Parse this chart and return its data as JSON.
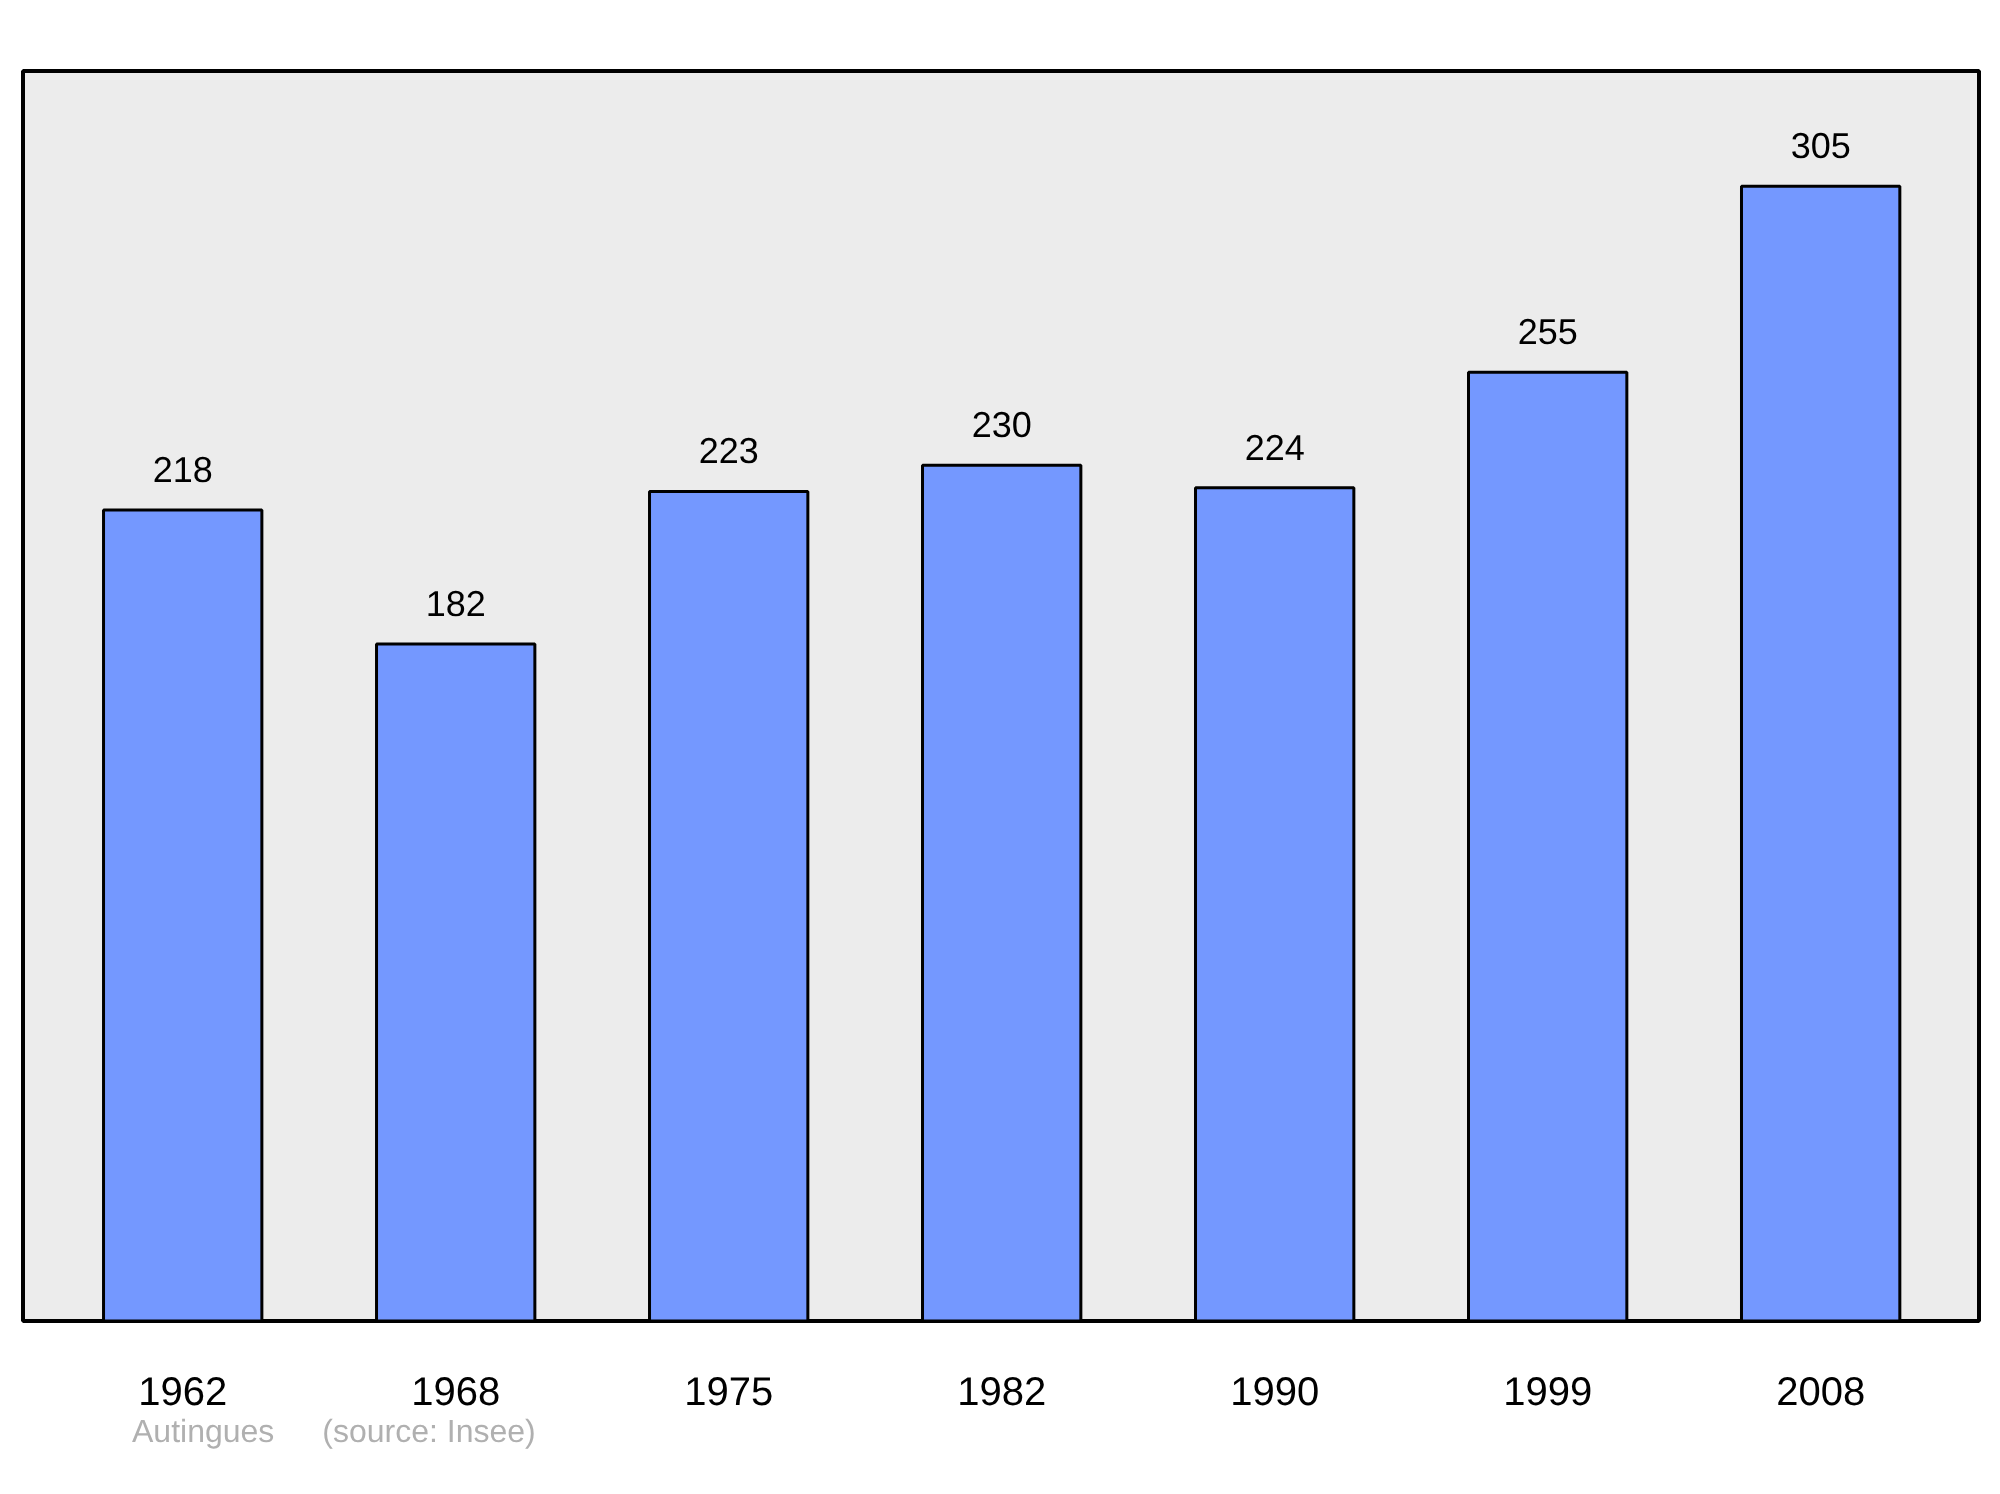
{
  "chart_data": {
    "type": "bar",
    "categories": [
      "1962",
      "1968",
      "1975",
      "1982",
      "1990",
      "1999",
      "2008"
    ],
    "values": [
      218,
      182,
      223,
      230,
      224,
      255,
      305
    ],
    "color": "#7498ff",
    "ylim": [
      0,
      336
    ],
    "tick_labels": "x",
    "data_labels": true,
    "grid": false,
    "annotations": [
      "Autingues",
      "(source: Insee)"
    ]
  }
}
